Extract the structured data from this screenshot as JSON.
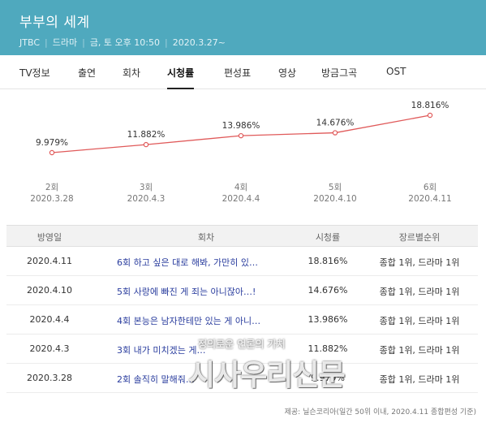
{
  "header": {
    "title": "부부의 세계",
    "meta": [
      "JTBC",
      "드라마",
      "금, 토 오후 10:50",
      "2020.3.27~"
    ]
  },
  "tabs": [
    {
      "label": "TV정보"
    },
    {
      "label": "출연"
    },
    {
      "label": "회차"
    },
    {
      "label": "시청률",
      "active": true
    },
    {
      "label": "편성표"
    },
    {
      "label": "영상"
    },
    {
      "label": "방금그곡"
    },
    {
      "label": "OST"
    }
  ],
  "chart_data": {
    "type": "line",
    "title": "",
    "xlabel": "",
    "ylabel": "",
    "categories": [
      "2회|2020.3.28",
      "3회|2020.4.3",
      "4회|2020.4.4",
      "5회|2020.4.10",
      "6회|2020.4.11"
    ],
    "x_episode": [
      "2회",
      "3회",
      "4회",
      "5회",
      "6회"
    ],
    "x_date": [
      "2020.3.28",
      "2020.4.3",
      "2020.4.4",
      "2020.4.10",
      "2020.4.11"
    ],
    "values": [
      9.979,
      11.882,
      13.986,
      14.676,
      18.816
    ],
    "value_labels": [
      "9.979%",
      "11.882%",
      "13.986%",
      "14.676%",
      "18.816%"
    ],
    "ylim": [
      9.0,
      19.5
    ],
    "grid": false,
    "color": "#e05a5a"
  },
  "table": {
    "headers": [
      "방영일",
      "회차",
      "시청률",
      "장르별순위"
    ],
    "rows": [
      {
        "date": "2020.4.11",
        "episode": "6회 하고 싶은 대로 해봐, 가만히 있…",
        "rating": "18.816%",
        "rank": "종합 1위, 드라마 1위"
      },
      {
        "date": "2020.4.10",
        "episode": "5회 사랑에 빠진 게 죄는 아니잖아…!",
        "rating": "14.676%",
        "rank": "종합 1위, 드라마 1위"
      },
      {
        "date": "2020.4.4",
        "episode": "4회 본능은 남자한테만 있는 게 아니…",
        "rating": "13.986%",
        "rank": "종합 1위, 드라마 1위"
      },
      {
        "date": "2020.4.3",
        "episode": "3회 내가 미치겠는 게…",
        "rating": "11.882%",
        "rank": "종합 1위, 드라마 1위"
      },
      {
        "date": "2020.3.28",
        "episode": "2회 솔직히 말해줘…",
        "rating": "9.979%",
        "rank": "종합 1위, 드라마 1위"
      }
    ]
  },
  "source": "제공: 닐슨코리아(일간 50위 이내, 2020.4.11 종합편성 기준)",
  "watermark": {
    "sub": "정의로운 언론의 가치",
    "main": "시사우리신문"
  }
}
